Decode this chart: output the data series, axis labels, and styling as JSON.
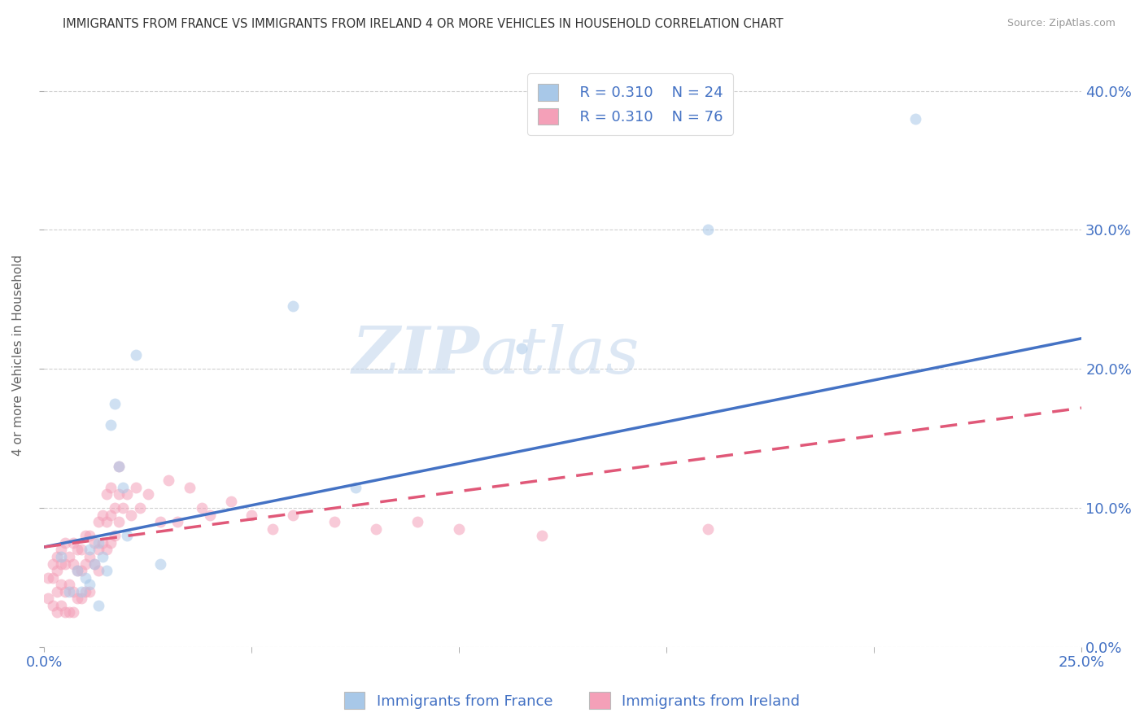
{
  "title": "IMMIGRANTS FROM FRANCE VS IMMIGRANTS FROM IRELAND 4 OR MORE VEHICLES IN HOUSEHOLD CORRELATION CHART",
  "source": "Source: ZipAtlas.com",
  "ylabel": "4 or more Vehicles in Household",
  "xlim": [
    0.0,
    0.25
  ],
  "ylim": [
    0.0,
    0.42
  ],
  "france_color": "#a8c8e8",
  "ireland_color": "#f4a0b8",
  "france_line_color": "#4472c4",
  "ireland_line_color": "#e05878",
  "title_color": "#333333",
  "source_color": "#999999",
  "axis_label_color": "#4472c4",
  "tick_label_color": "#4472c4",
  "legend_r_france": "R = 0.310",
  "legend_n_france": "N = 24",
  "legend_r_ireland": "R = 0.310",
  "legend_n_ireland": "N = 76",
  "legend_label_france": "Immigrants from France",
  "legend_label_ireland": "Immigrants from Ireland",
  "france_x": [
    0.004,
    0.006,
    0.008,
    0.009,
    0.01,
    0.011,
    0.011,
    0.012,
    0.013,
    0.013,
    0.014,
    0.015,
    0.016,
    0.017,
    0.018,
    0.019,
    0.02,
    0.022,
    0.028,
    0.06,
    0.075,
    0.115,
    0.16,
    0.21
  ],
  "france_y": [
    0.065,
    0.04,
    0.055,
    0.04,
    0.05,
    0.045,
    0.07,
    0.06,
    0.075,
    0.03,
    0.065,
    0.055,
    0.16,
    0.175,
    0.13,
    0.115,
    0.08,
    0.21,
    0.06,
    0.245,
    0.115,
    0.215,
    0.3,
    0.38
  ],
  "ireland_x": [
    0.001,
    0.001,
    0.002,
    0.002,
    0.002,
    0.003,
    0.003,
    0.003,
    0.003,
    0.004,
    0.004,
    0.004,
    0.004,
    0.005,
    0.005,
    0.005,
    0.005,
    0.006,
    0.006,
    0.006,
    0.007,
    0.007,
    0.007,
    0.007,
    0.008,
    0.008,
    0.008,
    0.009,
    0.009,
    0.009,
    0.01,
    0.01,
    0.01,
    0.011,
    0.011,
    0.011,
    0.012,
    0.012,
    0.013,
    0.013,
    0.013,
    0.014,
    0.014,
    0.015,
    0.015,
    0.015,
    0.016,
    0.016,
    0.016,
    0.017,
    0.017,
    0.018,
    0.018,
    0.018,
    0.019,
    0.02,
    0.021,
    0.022,
    0.023,
    0.025,
    0.028,
    0.03,
    0.032,
    0.035,
    0.038,
    0.04,
    0.045,
    0.05,
    0.055,
    0.06,
    0.07,
    0.08,
    0.09,
    0.1,
    0.12,
    0.16
  ],
  "ireland_y": [
    0.035,
    0.05,
    0.03,
    0.05,
    0.06,
    0.025,
    0.04,
    0.055,
    0.065,
    0.03,
    0.045,
    0.06,
    0.07,
    0.025,
    0.04,
    0.06,
    0.075,
    0.025,
    0.045,
    0.065,
    0.025,
    0.04,
    0.06,
    0.075,
    0.035,
    0.055,
    0.07,
    0.035,
    0.055,
    0.07,
    0.04,
    0.06,
    0.08,
    0.04,
    0.065,
    0.08,
    0.06,
    0.075,
    0.055,
    0.07,
    0.09,
    0.075,
    0.095,
    0.07,
    0.09,
    0.11,
    0.075,
    0.095,
    0.115,
    0.08,
    0.1,
    0.09,
    0.11,
    0.13,
    0.1,
    0.11,
    0.095,
    0.115,
    0.1,
    0.11,
    0.09,
    0.12,
    0.09,
    0.115,
    0.1,
    0.095,
    0.105,
    0.095,
    0.085,
    0.095,
    0.09,
    0.085,
    0.09,
    0.085,
    0.08,
    0.085
  ],
  "watermark_zip": "ZIP",
  "watermark_atlas": "atlas",
  "background_color": "#ffffff",
  "grid_color": "#d0d0d0",
  "marker_size": 10,
  "marker_alpha": 0.55,
  "line_width": 2.5,
  "france_line_intercept": 0.072,
  "france_line_slope": 0.6,
  "ireland_line_intercept": 0.072,
  "ireland_line_slope": 0.4
}
